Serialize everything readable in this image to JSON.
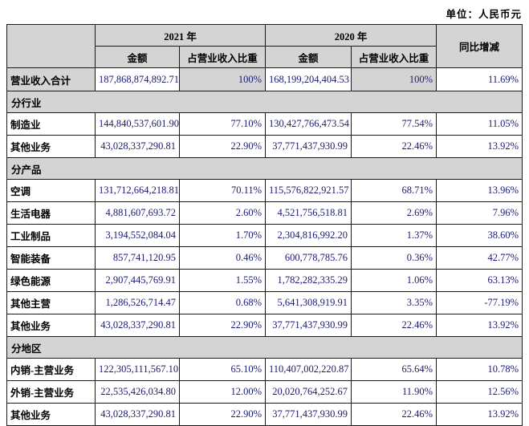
{
  "unit_label": "单位：人民币元",
  "colors": {
    "shaded_bg": "#d4d4d4",
    "number_color": "#1b1b70",
    "border": "#1a1a1a"
  },
  "header": {
    "col_group_2021": "2021 年",
    "col_group_2020": "2020 年",
    "col_amount_2021": "金额",
    "col_share_2021": "占营业收入比重",
    "col_amount_2020": "金额",
    "col_share_2020": "占营业收入比重",
    "col_yoy": "同比增减"
  },
  "rows": [
    {
      "type": "total",
      "label": "营业收入合计",
      "a2021": "187,868,874,892.71",
      "p2021": "100%",
      "a2020": "168,199,204,404.53",
      "p2020": "100%",
      "yoy": "11.69%"
    },
    {
      "type": "section",
      "label": "分行业"
    },
    {
      "type": "data",
      "label": "制造业",
      "a2021": "144,840,537,601.90",
      "p2021": "77.10%",
      "a2020": "130,427,766,473.54",
      "p2020": "77.54%",
      "yoy": "11.05%"
    },
    {
      "type": "data",
      "label": "其他业务",
      "a2021": "43,028,337,290.81",
      "p2021": "22.90%",
      "a2020": "37,771,437,930.99",
      "p2020": "22.46%",
      "yoy": "13.92%"
    },
    {
      "type": "section",
      "label": "分产品"
    },
    {
      "type": "data",
      "label": "空调",
      "a2021": "131,712,664,218.81",
      "p2021": "70.11%",
      "a2020": "115,576,822,921.57",
      "p2020": "68.71%",
      "yoy": "13.96%"
    },
    {
      "type": "data",
      "label": "生活电器",
      "a2021": "4,881,607,693.72",
      "p2021": "2.60%",
      "a2020": "4,521,756,518.81",
      "p2020": "2.69%",
      "yoy": "7.96%"
    },
    {
      "type": "data",
      "label": "工业制品",
      "a2021": "3,194,552,084.04",
      "p2021": "1.70%",
      "a2020": "2,304,816,992.20",
      "p2020": "1.37%",
      "yoy": "38.60%"
    },
    {
      "type": "data",
      "label": "智能装备",
      "a2021": "857,741,120.95",
      "p2021": "0.46%",
      "a2020": "600,778,785.76",
      "p2020": "0.36%",
      "yoy": "42.77%"
    },
    {
      "type": "data",
      "label": "绿色能源",
      "a2021": "2,907,445,769.91",
      "p2021": "1.55%",
      "a2020": "1,782,282,335.29",
      "p2020": "1.06%",
      "yoy": "63.13%"
    },
    {
      "type": "data",
      "label": "其他主营",
      "a2021": "1,286,526,714.47",
      "p2021": "0.68%",
      "a2020": "5,641,308,919.91",
      "p2020": "3.35%",
      "yoy": "-77.19%"
    },
    {
      "type": "data",
      "label": "其他业务",
      "a2021": "43,028,337,290.81",
      "p2021": "22.90%",
      "a2020": "37,771,437,930.99",
      "p2020": "22.46%",
      "yoy": "13.92%"
    },
    {
      "type": "section",
      "label": "分地区"
    },
    {
      "type": "data",
      "label": "内销-主营业务",
      "a2021": "122,305,111,567.10",
      "p2021": "65.10%",
      "a2020": "110,407,002,220.87",
      "p2020": "65.64%",
      "yoy": "10.78%"
    },
    {
      "type": "data",
      "label": "外销-主营业务",
      "a2021": "22,535,426,034.80",
      "p2021": "12.00%",
      "a2020": "20,020,764,252.67",
      "p2020": "11.90%",
      "yoy": "12.56%"
    },
    {
      "type": "data",
      "label": "其他业务",
      "a2021": "43,028,337,290.81",
      "p2021": "22.90%",
      "a2020": "37,771,437,930.99",
      "p2020": "22.46%",
      "yoy": "13.92%"
    }
  ]
}
